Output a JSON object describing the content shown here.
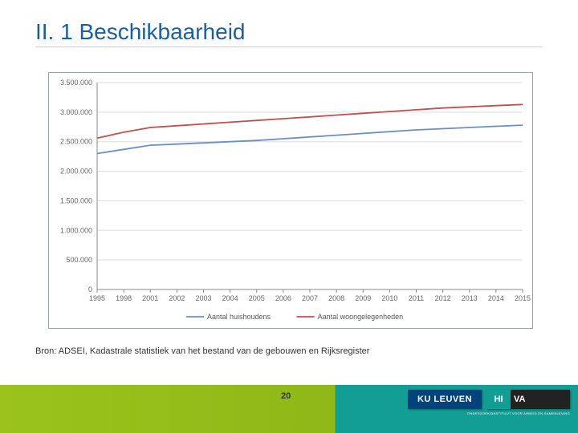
{
  "title": "II. 1 Beschikbaarheid",
  "source": "Bron: ADSEI, Kadastrale statistiek van het bestand van de gebouwen en Rijksregister",
  "page_number": "20",
  "branding": {
    "ku": "KU LEUVEN",
    "hiva_accent": "HI",
    "hiva_rest": "VA",
    "hiva_sub": "ONDERZOEKSINSTITUUT VOOR ARBEID EN SAMENLEVING"
  },
  "chart": {
    "type": "line",
    "background_color": "#ffffff",
    "grid_color": "#dddddd",
    "axis_color": "#888888",
    "label_color": "#666666",
    "label_fontsize": 9,
    "x_categories": [
      "1995",
      "1998",
      "2001",
      "2002",
      "2003",
      "2004",
      "2005",
      "2006",
      "2007",
      "2008",
      "2009",
      "2010",
      "2011",
      "2012",
      "2013",
      "2014",
      "2015"
    ],
    "ylim": [
      0,
      3500000
    ],
    "ytick_step": 500000,
    "ytick_labels": [
      "0",
      "500.000",
      "1.000.000",
      "1.500.000",
      "2.000.000",
      "2.500.000",
      "3.000.000",
      "3.500.000"
    ],
    "series": [
      {
        "name": "Aantal huishoudens",
        "color": "#6a8fc6",
        "values": [
          2300000,
          2370000,
          2440000,
          2460000,
          2480000,
          2500000,
          2520000,
          2550000,
          2580000,
          2610000,
          2640000,
          2670000,
          2700000,
          2720000,
          2740000,
          2760000,
          2780000
        ]
      },
      {
        "name": "Aantal woongelegenheden",
        "color": "#c0504d",
        "values": [
          2560000,
          2660000,
          2740000,
          2770000,
          2800000,
          2830000,
          2860000,
          2890000,
          2920000,
          2950000,
          2980000,
          3010000,
          3040000,
          3070000,
          3090000,
          3110000,
          3130000
        ]
      }
    ],
    "line_width": 1.8,
    "legend_position": "bottom-center"
  }
}
